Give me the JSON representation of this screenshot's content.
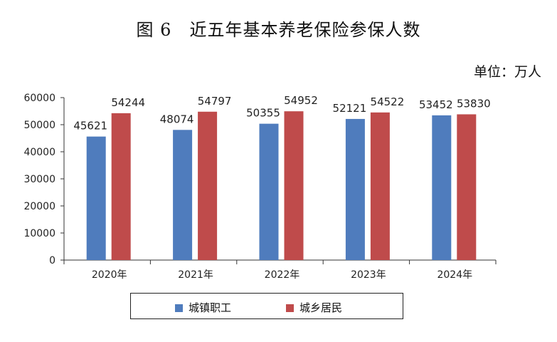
{
  "title": "图 6　近五年基本养老保险参保人数",
  "unit_label": "单位：万人",
  "colors": {
    "series1": "#4f7cbd",
    "series2": "#bf4b4b"
  },
  "chart_data": {
    "type": "bar",
    "categories": [
      "2020年",
      "2021年",
      "2022年",
      "2023年",
      "2024年"
    ],
    "series": [
      {
        "name": "城镇职工",
        "values": [
          45621,
          48074,
          50355,
          52121,
          53452
        ]
      },
      {
        "name": "城乡居民",
        "values": [
          54244,
          54797,
          54952,
          54522,
          53830
        ]
      }
    ],
    "yticks": [
      "0",
      "10000",
      "20000",
      "30000",
      "40000",
      "50000",
      "60000"
    ],
    "ylim": [
      0,
      60000
    ],
    "grid": false,
    "legend_position": "bottom"
  }
}
